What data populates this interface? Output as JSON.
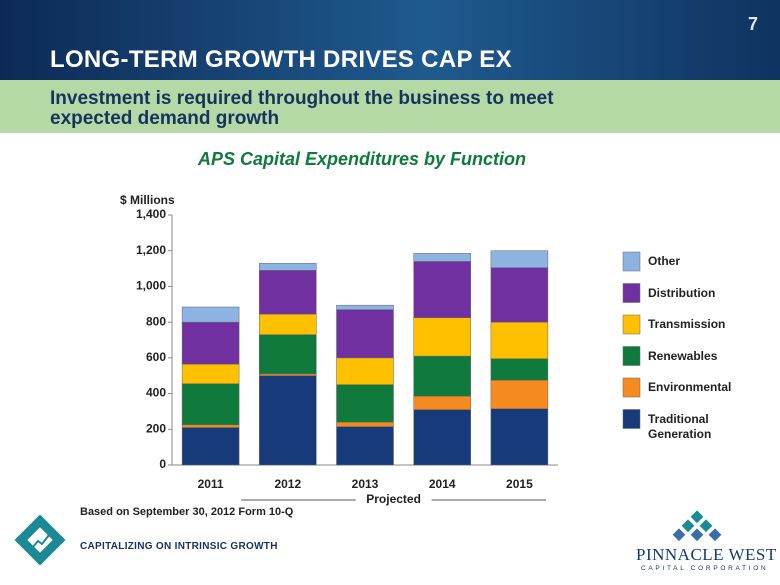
{
  "slide_number": "7",
  "title": "LONG-TERM GROWTH DRIVES CAP EX",
  "subtitle": "Investment is required throughout the business to meet expected demand growth",
  "chart_data": {
    "type": "stacked_bar",
    "title": "APS Capital Expenditures by Function",
    "y_label": "$ Millions",
    "categories": [
      "2011",
      "2012",
      "2013",
      "2014",
      "2015"
    ],
    "series": [
      {
        "name": "Traditional Generation",
        "color": "#173b7a",
        "values": [
          210,
          500,
          215,
          310,
          315
        ]
      },
      {
        "name": "Environmental",
        "color": "#f58a1f",
        "values": [
          15,
          10,
          25,
          75,
          160
        ]
      },
      {
        "name": "Renewables",
        "color": "#0f7a3c",
        "values": [
          230,
          220,
          210,
          225,
          120
        ]
      },
      {
        "name": "Transmission",
        "color": "#ffc000",
        "values": [
          110,
          115,
          150,
          215,
          205
        ]
      },
      {
        "name": "Distribution",
        "color": "#7030a0",
        "values": [
          235,
          245,
          270,
          315,
          305
        ]
      },
      {
        "name": "Other",
        "color": "#8db3e2",
        "values": [
          85,
          40,
          25,
          45,
          95
        ]
      }
    ],
    "ylim": [
      0,
      1400
    ],
    "yticks": [
      0,
      200,
      400,
      600,
      800,
      {
        "value": 1000,
        "label": "1,000"
      },
      {
        "value": 1200,
        "label": "1,200"
      },
      {
        "value": 1400,
        "label": "1,400"
      }
    ],
    "grid": false,
    "legend": "right",
    "annotation": "Projected"
  },
  "footnote": "Based on September 30, 2012 Form 10-Q",
  "tagline": "CAPITALIZING ON INTRINSIC GROWTH",
  "logo": {
    "name": "PINNACLE WEST",
    "sub": "CAPITAL CORPORATION"
  }
}
